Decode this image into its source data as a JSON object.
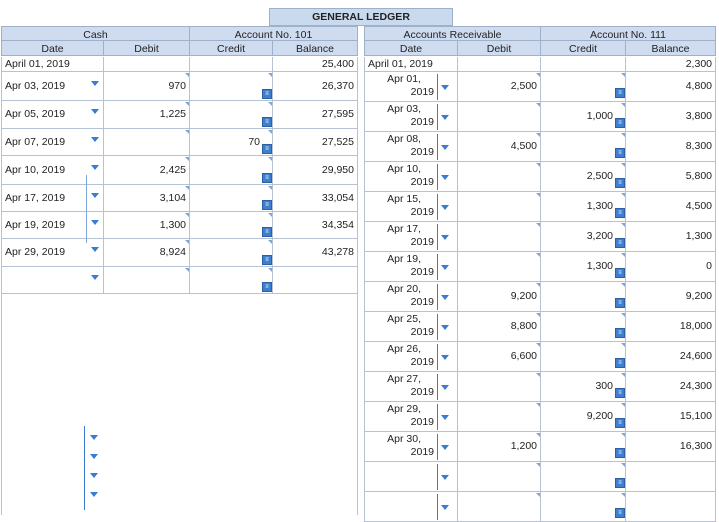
{
  "title": "GENERAL LEDGER",
  "left": {
    "account_name": "Cash",
    "account_no": "Account No. 101",
    "headers": [
      "Date",
      "Debit",
      "Credit",
      "Balance"
    ],
    "rows": [
      {
        "date": "April 01, 2019",
        "debit": "",
        "credit": "",
        "balance": "25,400"
      },
      {
        "date": "Apr 03, 2019",
        "debit": "970",
        "credit": "",
        "balance": "26,370"
      },
      {
        "date": "Apr 05, 2019",
        "debit": "1,225",
        "credit": "",
        "balance": "27,595"
      },
      {
        "date": "Apr 07, 2019",
        "debit": "",
        "credit": "70",
        "balance": "27,525"
      },
      {
        "date": "Apr 10, 2019",
        "debit": "2,425",
        "credit": "",
        "balance": "29,950"
      },
      {
        "date": "Apr 17, 2019",
        "debit": "3,104",
        "credit": "",
        "balance": "33,054"
      },
      {
        "date": "Apr 19, 2019",
        "debit": "1,300",
        "credit": "",
        "balance": "34,354"
      },
      {
        "date": "Apr 29, 2019",
        "debit": "8,924",
        "credit": "",
        "balance": "43,278"
      },
      {
        "date": "",
        "debit": "",
        "credit": "",
        "balance": ""
      }
    ]
  },
  "right": {
    "account_name": "Accounts Receivable",
    "account_no": "Account No. 111",
    "headers": [
      "Date",
      "Debit",
      "Credit",
      "Balance"
    ],
    "rows": [
      {
        "date_1": "April 01, 2019",
        "date_2": "",
        "debit": "",
        "credit": "",
        "balance": "2,300"
      },
      {
        "date_1": "Apr 01,",
        "date_2": "2019",
        "debit": "2,500",
        "credit": "",
        "balance": "4,800"
      },
      {
        "date_1": "Apr 03,",
        "date_2": "2019",
        "debit": "",
        "credit": "1,000",
        "balance": "3,800"
      },
      {
        "date_1": "Apr 08,",
        "date_2": "2019",
        "debit": "4,500",
        "credit": "",
        "balance": "8,300"
      },
      {
        "date_1": "Apr 10,",
        "date_2": "2019",
        "debit": "",
        "credit": "2,500",
        "balance": "5,800"
      },
      {
        "date_1": "Apr 15,",
        "date_2": "2019",
        "debit": "",
        "credit": "1,300",
        "balance": "4,500"
      },
      {
        "date_1": "Apr 17,",
        "date_2": "2019",
        "debit": "",
        "credit": "3,200",
        "balance": "1,300"
      },
      {
        "date_1": "Apr 19,",
        "date_2": "2019",
        "debit": "",
        "credit": "1,300",
        "balance": "0"
      },
      {
        "date_1": "Apr 20,",
        "date_2": "2019",
        "debit": "9,200",
        "credit": "",
        "balance": "9,200"
      },
      {
        "date_1": "Apr 25,",
        "date_2": "2019",
        "debit": "8,800",
        "credit": "",
        "balance": "18,000"
      },
      {
        "date_1": "Apr 26,",
        "date_2": "2019",
        "debit": "6,600",
        "credit": "",
        "balance": "24,600"
      },
      {
        "date_1": "Apr 27,",
        "date_2": "2019",
        "debit": "",
        "credit": "300",
        "balance": "24,300"
      },
      {
        "date_1": "Apr 29,",
        "date_2": "2019",
        "debit": "",
        "credit": "9,200",
        "balance": "15,100"
      },
      {
        "date_1": "Apr 30,",
        "date_2": "2019",
        "debit": "1,200",
        "credit": "",
        "balance": "16,300"
      },
      {
        "date_1": "",
        "date_2": "",
        "debit": "",
        "credit": "",
        "balance": ""
      },
      {
        "date_1": "",
        "date_2": "",
        "debit": "",
        "credit": "",
        "balance": ""
      }
    ]
  },
  "colors": {
    "header_bg": "#cfdcf0",
    "accent": "#3a7bd5",
    "border": "#b7c3d3"
  },
  "icons": {
    "dropdown": "chevron-down-icon",
    "edit": "calc-edit-icon"
  }
}
